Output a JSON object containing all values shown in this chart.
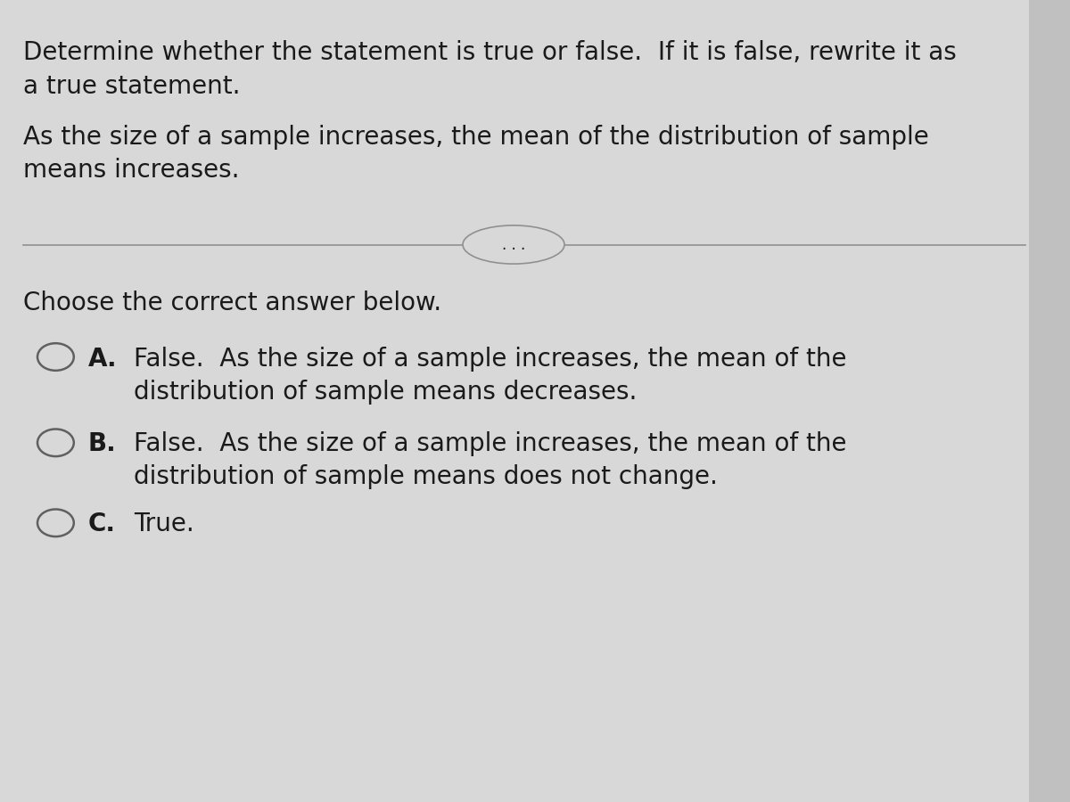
{
  "background_color": "#d8d8d8",
  "text_color": "#1a1a1a",
  "title_line1": "Determine whether the statement is true or false.  If it is false, rewrite it as",
  "title_line2": "a true statement.",
  "statement_line1": "As the size of a sample increases, the mean of the distribution of sample",
  "statement_line2": "means increases.",
  "divider_label": ". . .",
  "choose_text": "Choose the correct answer below.",
  "option_A_label": "A.",
  "option_A_line1": "False.  As the size of a sample increases, the mean of the",
  "option_A_line2": "distribution of sample means decreases.",
  "option_B_label": "B.",
  "option_B_line1": "False.  As the size of a sample increases, the mean of the",
  "option_B_line2": "distribution of sample means does not change.",
  "option_C_label": "C.",
  "option_C_text": "True.",
  "font_size_main": 20,
  "font_size_options": 20,
  "scrollbar_bg": "#c0c0c0",
  "scrollbar_arrow": "#444444"
}
